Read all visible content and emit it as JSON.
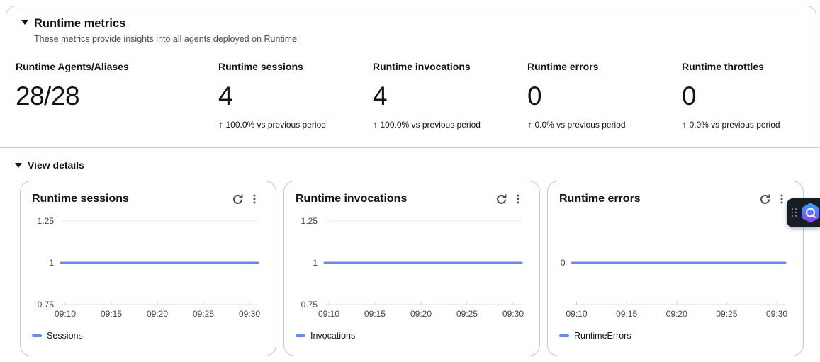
{
  "header": {
    "title": "Runtime metrics",
    "subtitle": "These metrics provide insights into all agents deployed on Runtime"
  },
  "metrics": [
    {
      "label": "Runtime Agents/Aliases",
      "value": "28/28"
    },
    {
      "label": "Runtime sessions",
      "value": "4",
      "arrow": "↑",
      "delta": "100.0% vs previous period"
    },
    {
      "label": "Runtime invocations",
      "value": "4",
      "arrow": "↑",
      "delta": "100.0% vs previous period"
    },
    {
      "label": "Runtime errors",
      "value": "0",
      "arrow": "↑",
      "delta": "0.0% vs previous period"
    },
    {
      "label": "Runtime throttles",
      "value": "0",
      "arrow": "↑",
      "delta": "0.0% vs previous period"
    }
  ],
  "view_details": {
    "label": "View details"
  },
  "chart_style": {
    "grid": "#e9ebed",
    "axis": "#d5dbdb",
    "tick_text": "#424650"
  },
  "chart_data": [
    {
      "type": "line",
      "title": "Runtime sessions",
      "x": [
        "09:10",
        "09:15",
        "09:20",
        "09:25",
        "09:30"
      ],
      "series": [
        {
          "name": "Sessions",
          "color": "#688ae8",
          "values": [
            1,
            1,
            1,
            1,
            1
          ]
        }
      ],
      "ylim": [
        0.75,
        1.25
      ],
      "yticks": [
        0.75,
        1,
        1.25
      ],
      "legend_position": "bottom",
      "grid": true
    },
    {
      "type": "line",
      "title": "Runtime invocations",
      "x": [
        "09:10",
        "09:15",
        "09:20",
        "09:25",
        "09:30"
      ],
      "series": [
        {
          "name": "Invocations",
          "color": "#688ae8",
          "values": [
            1,
            1,
            1,
            1,
            1
          ]
        }
      ],
      "ylim": [
        0.75,
        1.25
      ],
      "yticks": [
        0.75,
        1,
        1.25
      ],
      "legend_position": "bottom",
      "grid": true
    },
    {
      "type": "line",
      "title": "Runtime errors",
      "x": [
        "09:10",
        "09:15",
        "09:20",
        "09:25",
        "09:30"
      ],
      "series": [
        {
          "name": "RuntimeErrors",
          "color": "#688ae8",
          "values": [
            0,
            0,
            0,
            0,
            0
          ]
        }
      ],
      "ylim": [
        -1,
        1
      ],
      "yticks": [
        0
      ],
      "legend_position": "bottom",
      "grid": true
    }
  ]
}
